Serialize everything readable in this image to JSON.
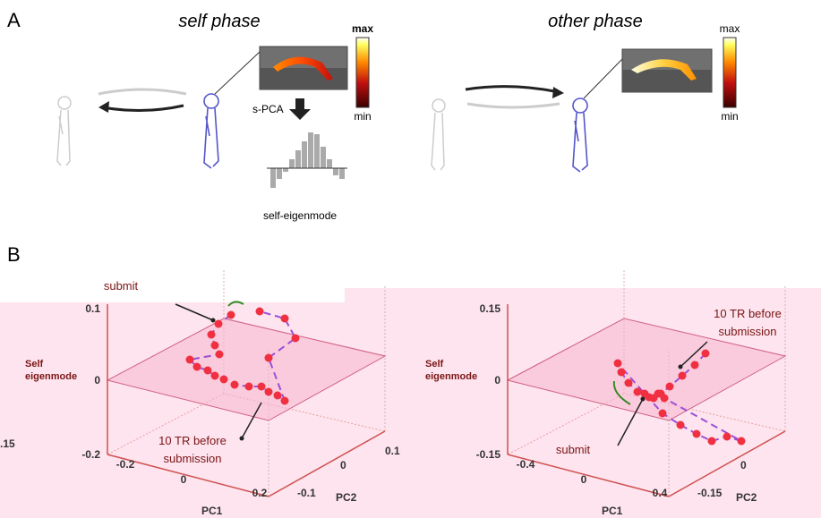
{
  "panel_a": {
    "label": "A",
    "self_phase": {
      "title": "self phase",
      "colorbar": {
        "max": "max",
        "min": "min"
      },
      "method": "s-PCA",
      "output": "self-eigenmode"
    },
    "other_phase": {
      "title": "other phase",
      "colorbar": {
        "max": "max",
        "min": "min"
      }
    }
  },
  "panel_b": {
    "label": "B",
    "cropped_tick": ".15",
    "plots": [
      {
        "z_label": [
          "Self",
          "eigenmode"
        ],
        "z_ticks": [
          "0.1",
          "0",
          "-0.2"
        ],
        "x_label": "PC1",
        "x_ticks": [
          "-0.2",
          "0",
          "0.2"
        ],
        "y_label": "PC2",
        "y_ticks": [
          "-0.1",
          "0",
          "0.1"
        ],
        "annotations": [
          "submit",
          "10 TR before",
          "submission"
        ]
      },
      {
        "z_label": [
          "Self",
          "eigenmode"
        ],
        "z_ticks": [
          "0.15",
          "0",
          "-0.15"
        ],
        "x_label": "PC1",
        "x_ticks": [
          "-0.4",
          "0",
          "0.4"
        ],
        "y_label": "PC2",
        "y_ticks": [
          "-0.15",
          "0"
        ],
        "annotations": [
          "10 TR before",
          "submission",
          "submit"
        ]
      }
    ]
  }
}
